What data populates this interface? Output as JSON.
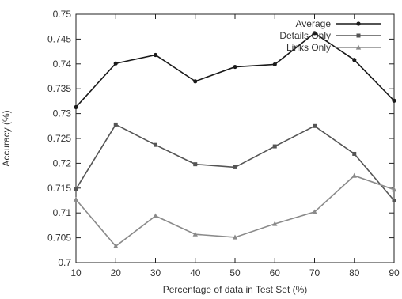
{
  "chart_data": {
    "type": "line",
    "xlabel": "Percentage of data in Test Set (%)",
    "ylabel": "Accuracy (%)",
    "xlim": [
      10,
      90
    ],
    "ylim": [
      0.7,
      0.75
    ],
    "xticks": [
      10,
      20,
      30,
      40,
      50,
      60,
      70,
      80,
      90
    ],
    "yticks": [
      0.7,
      0.705,
      0.71,
      0.715,
      0.72,
      0.725,
      0.73,
      0.735,
      0.74,
      0.745,
      0.75
    ],
    "ytick_labels": [
      "0.7",
      "0.705",
      "0.71",
      "0.715",
      "0.72",
      "0.725",
      "0.73",
      "0.735",
      "0.74",
      "0.745",
      "0.75"
    ],
    "grid": false,
    "legend": "top-right",
    "series": [
      {
        "name": "Average",
        "marker": "circle",
        "color": "#1a1a1a",
        "x": [
          10,
          20,
          30,
          40,
          50,
          60,
          70,
          80,
          90
        ],
        "y": [
          0.7313,
          0.7401,
          0.7418,
          0.7365,
          0.7394,
          0.7399,
          0.7462,
          0.7408,
          0.7326
        ]
      },
      {
        "name": "Details Only",
        "marker": "square",
        "color": "#555555",
        "x": [
          10,
          20,
          30,
          40,
          50,
          60,
          70,
          80,
          90
        ],
        "y": [
          0.7148,
          0.7278,
          0.7237,
          0.7198,
          0.7192,
          0.7234,
          0.7275,
          0.7219,
          0.7125
        ]
      },
      {
        "name": "Links Only",
        "marker": "triangle",
        "color": "#8a8a8a",
        "x": [
          10,
          20,
          30,
          40,
          50,
          60,
          70,
          80,
          90
        ],
        "y": [
          0.7127,
          0.7033,
          0.7094,
          0.7057,
          0.7051,
          0.7078,
          0.7102,
          0.7175,
          0.7147
        ]
      }
    ]
  }
}
